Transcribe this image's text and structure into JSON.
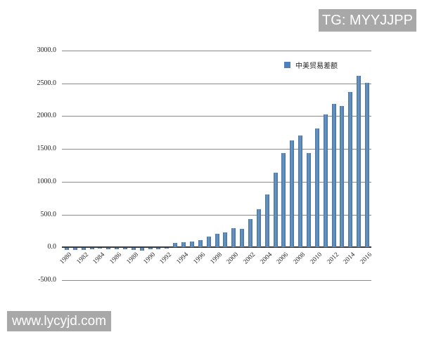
{
  "watermarks": {
    "top_right": "TG: MYYJJPP",
    "bottom_left": "www.lycyjd.com"
  },
  "colors": {
    "bar": "#4f81bd",
    "gridline": "#8a8a8a",
    "zero_axis": "#3a3a3a",
    "watermark_bg": "#a8a8a8",
    "watermark_text": "#ffffff"
  },
  "chart_data": {
    "type": "bar",
    "title": "",
    "legend_position": "top-right-inside",
    "grid": "horizontal",
    "ylim": [
      -500,
      3000
    ],
    "ytick_interval": 500,
    "ytick_labels": [
      "3000.0",
      "2500.0",
      "2000.0",
      "1500.0",
      "1000.0",
      "500.0",
      "0.0",
      "-500.0"
    ],
    "x": [
      1980,
      1981,
      1982,
      1983,
      1984,
      1985,
      1986,
      1987,
      1988,
      1989,
      1990,
      1991,
      1992,
      1993,
      1994,
      1995,
      1996,
      1997,
      1998,
      1999,
      2000,
      2001,
      2002,
      2003,
      2004,
      2005,
      2006,
      2007,
      2008,
      2009,
      2010,
      2011,
      2012,
      2013,
      2014,
      2015,
      2016
    ],
    "x_tick_labels": [
      "1980",
      "1982",
      "1984",
      "1986",
      "1988",
      "1990",
      "1992",
      "1994",
      "1996",
      "1998",
      "2000",
      "2002",
      "2004",
      "2006",
      "2008",
      "2010",
      "2012",
      "2014",
      "2016"
    ],
    "series": [
      {
        "name": "中美贸易差额",
        "values": [
          -28.5,
          -29.5,
          -26.6,
          -19.4,
          -12.6,
          -23.0,
          -20.9,
          -17.8,
          -32.5,
          -34.7,
          -14.1,
          -18.4,
          -3.1,
          62.7,
          74.9,
          85.9,
          105.3,
          164.0,
          210.2,
          224.7,
          297.4,
          280.8,
          427.2,
          586.1,
          802.7,
          1141.7,
          1442.6,
          1633.2,
          1708.6,
          1433.7,
          1812.6,
          2023.4,
          2189.2,
          2159.0,
          2370.2,
          2613.7,
          2507.9
        ]
      }
    ]
  }
}
